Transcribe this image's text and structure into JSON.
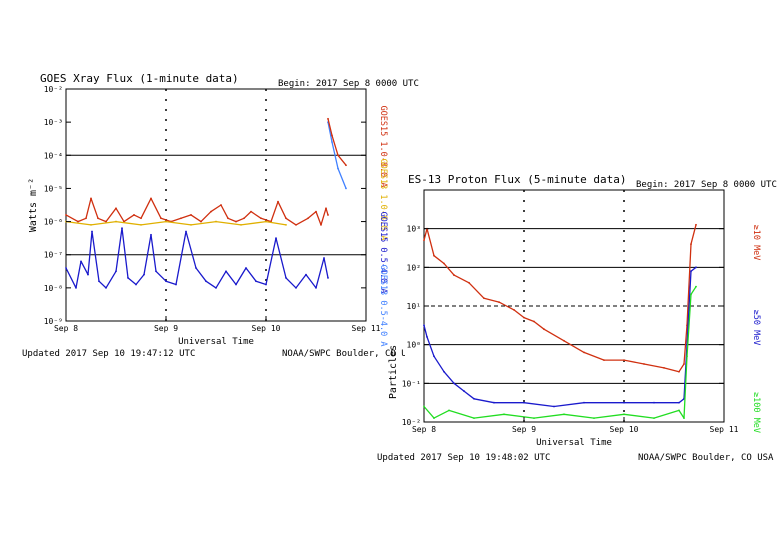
{
  "chart_data": [
    {
      "id": "xray",
      "type": "line",
      "title": "GOES Xray Flux (1-minute data)",
      "begin": "Begin: 2017 Sep 8 0000 UTC",
      "xlabel": "Universal Time",
      "ylabel": "Watts m⁻²",
      "updated": "Updated 2017 Sep 10 19:47:12 UTC",
      "credit": "NOAA/SWPC Boulder, CO USA",
      "xlim": [
        0,
        3
      ],
      "ylim_log10": [
        -9,
        -2
      ],
      "x_tick_labels": [
        {
          "x": 0,
          "label": "Sep 8"
        },
        {
          "x": 1,
          "label": "Sep 9"
        },
        {
          "x": 2,
          "label": "Sep 10"
        },
        {
          "x": 3,
          "label": "Sep 11"
        }
      ],
      "y_tick_labels": [
        {
          "exp": -2,
          "label": "10⁻²"
        },
        {
          "exp": -3,
          "label": "10⁻³"
        },
        {
          "exp": -4,
          "label": "10⁻⁴"
        },
        {
          "exp": -5,
          "label": "10⁻⁵"
        },
        {
          "exp": -6,
          "label": "10⁻⁶"
        },
        {
          "exp": -7,
          "label": "10⁻⁷"
        },
        {
          "exp": -8,
          "label": "10⁻⁸"
        },
        {
          "exp": -9,
          "label": "10⁻⁹"
        }
      ],
      "reference_lines_log10": [
        -4,
        -7
      ],
      "dotted_day_lines": [
        1,
        2
      ],
      "series": [
        {
          "name": "GOES15 1.0-8.0 A",
          "color": "#d03010",
          "x": [
            0,
            0.12,
            0.2,
            0.25,
            0.32,
            0.4,
            0.5,
            0.58,
            0.68,
            0.75,
            0.85,
            0.95,
            1.05,
            1.15,
            1.25,
            1.35,
            1.45,
            1.55,
            1.62,
            1.7,
            1.78,
            1.85,
            1.95,
            2.05,
            2.12,
            2.2,
            2.3,
            2.42,
            2.5,
            2.55,
            2.6,
            2.62
          ],
          "log10": [
            -5.8,
            -6.0,
            -5.9,
            -5.3,
            -5.9,
            -6.0,
            -5.6,
            -6.0,
            -5.8,
            -5.9,
            -5.3,
            -5.9,
            -6.0,
            -5.9,
            -5.8,
            -6.0,
            -5.7,
            -5.5,
            -5.9,
            -6.0,
            -5.9,
            -5.7,
            -5.9,
            -6.0,
            -5.4,
            -5.9,
            -6.1,
            -5.9,
            -5.7,
            -6.1,
            -5.6,
            -5.8
          ]
        },
        {
          "name": "GOES13 1.0-8.0 A",
          "color": "#e0b000",
          "x": [
            0,
            0.25,
            0.5,
            0.75,
            1.0,
            1.25,
            1.5,
            1.75,
            2.0,
            2.2
          ],
          "log10": [
            -6.0,
            -6.1,
            -6.0,
            -6.1,
            -6.0,
            -6.1,
            -6.0,
            -6.1,
            -6.0,
            -6.1
          ]
        },
        {
          "name": "GOES15 0.5-4.0 A",
          "color": "#1a1acc",
          "x": [
            0,
            0.1,
            0.15,
            0.22,
            0.26,
            0.33,
            0.4,
            0.5,
            0.56,
            0.62,
            0.7,
            0.78,
            0.85,
            0.9,
            1.0,
            1.1,
            1.2,
            1.3,
            1.4,
            1.5,
            1.6,
            1.7,
            1.8,
            1.9,
            2.0,
            2.1,
            2.2,
            2.3,
            2.4,
            2.5,
            2.58,
            2.62
          ],
          "log10": [
            -7.4,
            -8.0,
            -7.2,
            -7.6,
            -6.3,
            -7.8,
            -8.0,
            -7.5,
            -6.2,
            -7.7,
            -7.9,
            -7.6,
            -6.4,
            -7.5,
            -7.8,
            -7.9,
            -6.3,
            -7.4,
            -7.8,
            -8.0,
            -7.5,
            -7.9,
            -7.4,
            -7.8,
            -7.9,
            -6.5,
            -7.7,
            -8.0,
            -7.6,
            -8.0,
            -7.1,
            -7.7
          ]
        },
        {
          "name": "GOES13 0.5-4.0 A",
          "color": "#4080ff",
          "x": [
            2.62,
            2.66,
            2.72,
            2.8
          ],
          "log10": [
            -3.0,
            -3.6,
            -4.4,
            -5.0
          ]
        },
        {
          "name": "GOES13 1.0-8.0 A (flare)",
          "color": "#d03010",
          "x": [
            2.62,
            2.66,
            2.72,
            2.8
          ],
          "log10": [
            -2.9,
            -3.4,
            -4.0,
            -4.3
          ]
        }
      ],
      "right_labels": [
        {
          "text": "GOES15 1.0-8.0 A",
          "color": "#d03010"
        },
        {
          "text": "GOES13 1.0-8.0 A",
          "color": "#e0b000"
        },
        {
          "text": "GOES15 0.5-4.0 A",
          "color": "#1a1acc"
        },
        {
          "text": "GOES13 0.5-4.0 A",
          "color": "#4080ff"
        }
      ]
    },
    {
      "id": "proton",
      "type": "line",
      "title": "ES-13 Proton Flux (5-minute data)",
      "begin": "Begin: 2017 Sep 8 0000 UTC",
      "xlabel": "Universal Time",
      "ylabel": "Particles",
      "updated": "Updated 2017 Sep 10 19:48:02 UTC",
      "credit": "NOAA/SWPC Boulder, CO USA",
      "xlim": [
        0,
        3
      ],
      "ylim_log10": [
        -2,
        4
      ],
      "x_tick_labels": [
        {
          "x": 0,
          "label": "Sep 8"
        },
        {
          "x": 1,
          "label": "Sep 9"
        },
        {
          "x": 2,
          "label": "Sep 10"
        },
        {
          "x": 3,
          "label": "Sep 11"
        }
      ],
      "y_tick_labels": [
        {
          "exp": 3,
          "label": "10³"
        },
        {
          "exp": 2,
          "label": "10²"
        },
        {
          "exp": 1,
          "label": "10¹"
        },
        {
          "exp": 0,
          "label": "10⁰"
        },
        {
          "exp": -1,
          "label": "10⁻¹"
        },
        {
          "exp": -2,
          "label": "10⁻²"
        }
      ],
      "reference_lines_log10": [
        3,
        2,
        0,
        -1
      ],
      "dashed_lines_log10": [
        1
      ],
      "dotted_day_lines": [
        1,
        2
      ],
      "series": [
        {
          "name": "≥10 MeV",
          "color": "#d03010",
          "x": [
            0,
            0.03,
            0.1,
            0.2,
            0.3,
            0.45,
            0.6,
            0.75,
            0.9,
            1.0,
            1.1,
            1.2,
            1.4,
            1.6,
            1.8,
            2.0,
            2.2,
            2.4,
            2.55,
            2.6,
            2.63,
            2.67,
            2.72
          ],
          "log10": [
            2.7,
            3.0,
            2.3,
            2.1,
            1.8,
            1.6,
            1.2,
            1.1,
            0.9,
            0.7,
            0.6,
            0.4,
            0.1,
            -0.2,
            -0.4,
            -0.4,
            -0.5,
            -0.6,
            -0.7,
            -0.5,
            0.5,
            2.6,
            3.1
          ]
        },
        {
          "name": "≥50 MeV",
          "color": "#1a1acc",
          "x": [
            0,
            0.03,
            0.1,
            0.2,
            0.3,
            0.4,
            0.5,
            0.7,
            1.0,
            1.3,
            1.6,
            2.0,
            2.3,
            2.55,
            2.6,
            2.63,
            2.67,
            2.72
          ],
          "log10": [
            0.5,
            0.2,
            -0.3,
            -0.7,
            -1.0,
            -1.2,
            -1.4,
            -1.5,
            -1.5,
            -1.6,
            -1.5,
            -1.5,
            -1.5,
            -1.5,
            -1.4,
            0.0,
            1.9,
            2.0
          ]
        },
        {
          "name": "≥100 MeV",
          "color": "#22dd22",
          "x": [
            0,
            0.1,
            0.25,
            0.5,
            0.8,
            1.1,
            1.4,
            1.7,
            2.0,
            2.3,
            2.55,
            2.6,
            2.63,
            2.67,
            2.72
          ],
          "log10": [
            -1.6,
            -1.9,
            -1.7,
            -1.9,
            -1.8,
            -1.9,
            -1.8,
            -1.9,
            -1.8,
            -1.9,
            -1.7,
            -1.9,
            -0.3,
            1.3,
            1.5
          ]
        }
      ],
      "right_labels": [
        {
          "text": "≥10 MeV",
          "color": "#d03010"
        },
        {
          "text": "≥50 MeV",
          "color": "#1a1acc"
        },
        {
          "text": "≥100 MeV",
          "color": "#22dd22"
        }
      ]
    }
  ]
}
